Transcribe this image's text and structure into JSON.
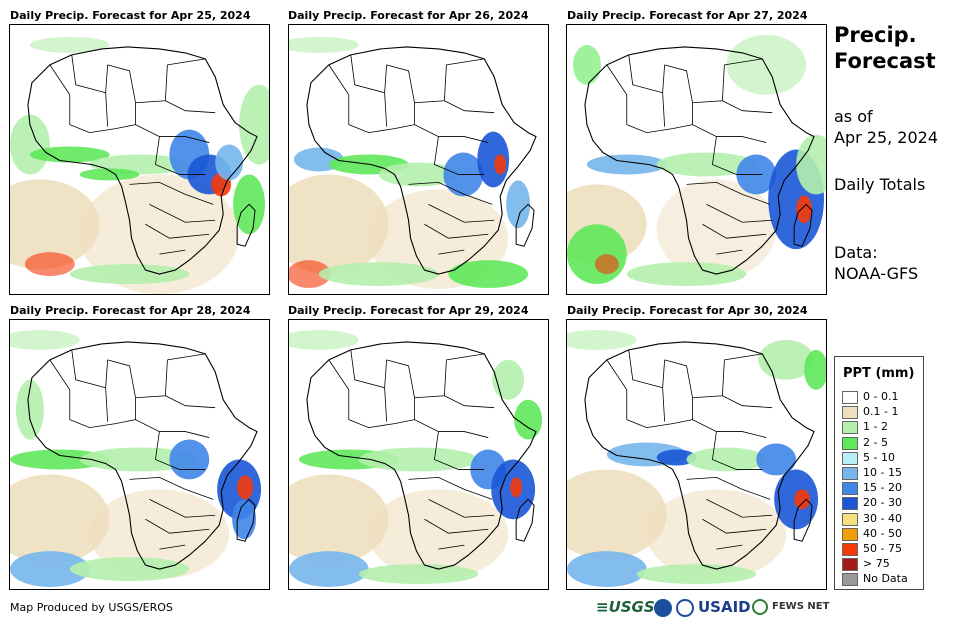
{
  "panels": [
    {
      "title": "Daily Precip. Forecast for Apr 25, 2024"
    },
    {
      "title": "Daily Precip. Forecast for Apr 26, 2024"
    },
    {
      "title": "Daily Precip. Forecast for Apr 27, 2024"
    },
    {
      "title": "Daily Precip. Forecast for Apr 28, 2024"
    },
    {
      "title": "Daily Precip. Forecast for Apr 29, 2024"
    },
    {
      "title": "Daily Precip. Forecast for Apr 30, 2024"
    }
  ],
  "sidebar": {
    "title_line1": "Precip.",
    "title_line2": "Forecast",
    "asof_line1": "as of",
    "asof_line2": "Apr 25, 2024",
    "totals": "Daily Totals",
    "data_line1": "Data:",
    "data_line2": "NOAA-GFS"
  },
  "legend": {
    "title": "PPT (mm)",
    "items": [
      {
        "label": "0 - 0.1",
        "color": "#ffffff"
      },
      {
        "label": "0.1 - 1",
        "color": "#eedfbf"
      },
      {
        "label": "1 - 2",
        "color": "#b5efad"
      },
      {
        "label": "2 - 5",
        "color": "#5fe85a"
      },
      {
        "label": "5 - 10",
        "color": "#b7f0f4"
      },
      {
        "label": "10 - 15",
        "color": "#76b6ec"
      },
      {
        "label": "15 - 20",
        "color": "#3f86e8"
      },
      {
        "label": "20 - 30",
        "color": "#1a56d6"
      },
      {
        "label": "30 - 40",
        "color": "#f4e07c"
      },
      {
        "label": "40 - 50",
        "color": "#f29d00"
      },
      {
        "label": "50 - 75",
        "color": "#f53a0a"
      },
      {
        "label": "> 75",
        "color": "#a21a1a"
      },
      {
        "label": "No Data",
        "color": "#9a9a9a"
      }
    ]
  },
  "footer": {
    "credit": "Map Produced by USGS/EROS"
  },
  "logos": {
    "usgs": "USGS",
    "usaid": "USAID",
    "fews": "FEWS NET"
  }
}
